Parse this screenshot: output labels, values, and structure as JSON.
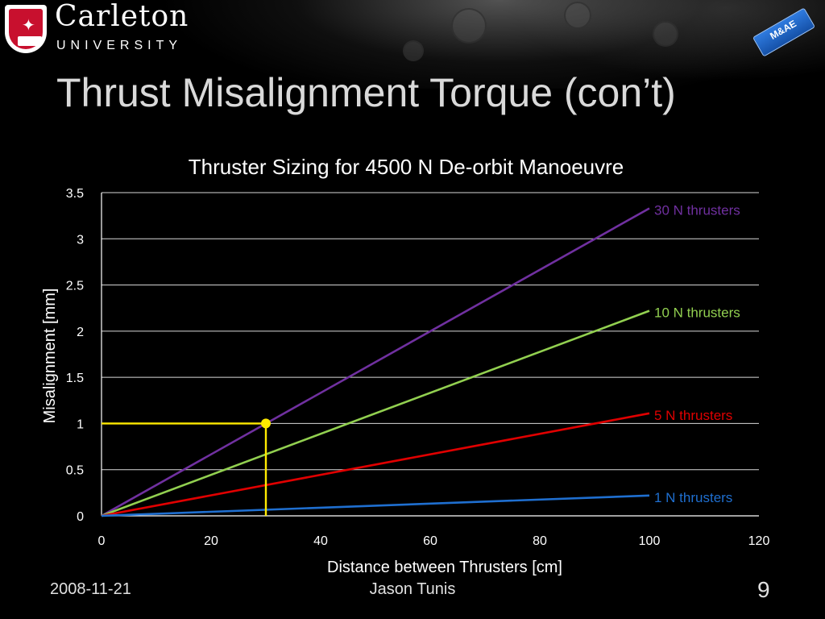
{
  "slide": {
    "title": "Thrust Misalignment Torque (con’t)",
    "date": "2008-11-21",
    "author": "Jason Tunis",
    "page_number": "9"
  },
  "logo": {
    "name": "Carleton",
    "subtitle": "UNIVERSITY",
    "badge_text": "M&AE"
  },
  "colors": {
    "background": "#000000",
    "axis": "#ffffff",
    "grid": "#d9d9d9",
    "marker": "#ffea00"
  },
  "chart_data": {
    "type": "line",
    "title": "Thruster Sizing for 4500 N De-orbit Manoeuvre",
    "xlabel": "Distance between Thrusters [cm]",
    "ylabel": "Misalignment [mm]",
    "xlim": [
      0,
      120
    ],
    "ylim": [
      0,
      3.5
    ],
    "x_ticks": [
      "0",
      "20",
      "40",
      "60",
      "80",
      "100",
      "120"
    ],
    "y_ticks": [
      "0",
      "0.5",
      "1",
      "1.5",
      "2",
      "2.5",
      "3",
      "3.5"
    ],
    "grid": "horizontal",
    "series": [
      {
        "name": "30 N thrusters",
        "color": "#7030a0",
        "x": [
          0,
          100
        ],
        "y": [
          0,
          3.33
        ]
      },
      {
        "name": "10 N thrusters",
        "color": "#92d050",
        "x": [
          0,
          100
        ],
        "y": [
          0,
          2.22
        ]
      },
      {
        "name": "5 N thrusters",
        "color": "#e00000",
        "x": [
          0,
          100
        ],
        "y": [
          0,
          1.11
        ]
      },
      {
        "name": "1 N thrusters",
        "color": "#1f6fd0",
        "x": [
          0,
          100
        ],
        "y": [
          0,
          0.22
        ]
      }
    ],
    "highlight_point": {
      "x": 30,
      "y": 1.0,
      "color": "#ffea00"
    }
  }
}
